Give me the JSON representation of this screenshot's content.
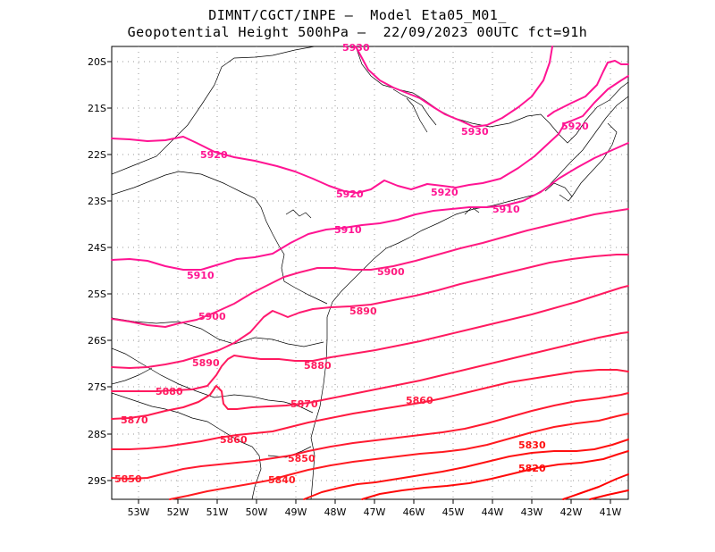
{
  "title": {
    "line1": "DIMNT/CGCT/INPE –  Model Eta05_M01_",
    "line2": "Geopotential Height 500hPa –  22/09/2023 00UTC fct=91h"
  },
  "axes": {
    "lat_labels": [
      "20S",
      "21S",
      "22S",
      "23S",
      "24S",
      "25S",
      "26S",
      "27S",
      "28S",
      "29S"
    ],
    "lon_labels": [
      "53W",
      "52W",
      "51W",
      "50W",
      "49W",
      "48W",
      "47W",
      "46W",
      "45W",
      "44W",
      "43W",
      "42W",
      "41W"
    ]
  },
  "contour_labels": [
    {
      "text": "5930",
      "color": "#ff1493"
    },
    {
      "text": "5930",
      "color": "#ff1493"
    },
    {
      "text": "5920",
      "color": "#ff1493"
    },
    {
      "text": "5920",
      "color": "#ff1493"
    },
    {
      "text": "5920",
      "color": "#ff1493"
    },
    {
      "text": "5920",
      "color": "#ff1493"
    },
    {
      "text": "5910",
      "color": "#ff1493"
    },
    {
      "text": "5910",
      "color": "#ff1493"
    },
    {
      "text": "5910",
      "color": "#ff1493"
    },
    {
      "text": "5900",
      "color": "#ff1a80"
    },
    {
      "text": "5900",
      "color": "#ff1a80"
    },
    {
      "text": "5890",
      "color": "#ff1a70"
    },
    {
      "text": "5890",
      "color": "#ff1a70"
    },
    {
      "text": "5880",
      "color": "#ff1a60"
    },
    {
      "text": "5880",
      "color": "#ff1a60"
    },
    {
      "text": "5870",
      "color": "#ff1a50"
    },
    {
      "text": "5870",
      "color": "#ff1a50"
    },
    {
      "text": "5860",
      "color": "#ff1a40"
    },
    {
      "text": "5860",
      "color": "#ff1a40"
    },
    {
      "text": "5850",
      "color": "#ff1a30"
    },
    {
      "text": "5850",
      "color": "#ff1a30"
    },
    {
      "text": "5840",
      "color": "#ff1a20"
    },
    {
      "text": "5830",
      "color": "#ff1010"
    },
    {
      "text": "5820",
      "color": "#ff0a0a"
    }
  ],
  "colors": {
    "high": "#ff1493",
    "low": "#ff0000",
    "coast": "#000000",
    "grid": "#999999"
  }
}
